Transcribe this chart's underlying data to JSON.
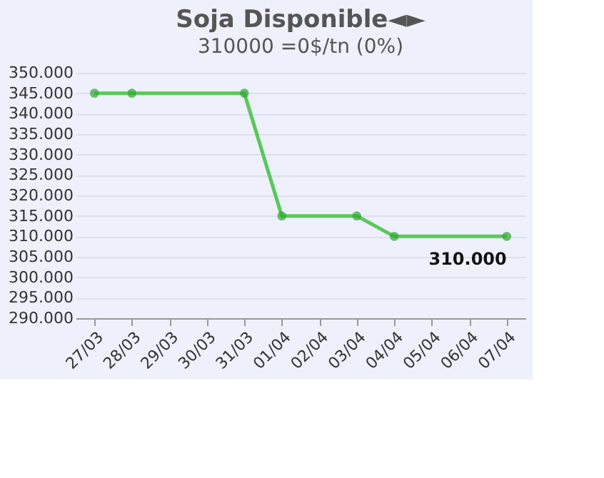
{
  "chart_data": {
    "type": "line",
    "title": "Soja Disponible◄►",
    "subtitle": "310000 =0$/tn (0%)",
    "categories": [
      "27/03",
      "28/03",
      "29/03",
      "30/03",
      "31/03",
      "01/04",
      "02/04",
      "03/04",
      "04/04",
      "05/04",
      "06/04",
      "07/04"
    ],
    "series": [
      {
        "color": "#5ac85a",
        "x": [
          "27/03",
          "28/03",
          "31/03",
          "01/04",
          "03/04",
          "04/04",
          "07/04"
        ],
        "values": [
          345000,
          345000,
          345000,
          315000,
          315000,
          310000,
          310000
        ],
        "value_labels": [
          null,
          null,
          null,
          null,
          null,
          null,
          "310.000"
        ]
      }
    ],
    "ylim": [
      290000,
      350000
    ],
    "yticks": [
      {
        "value": 290000,
        "label": "290.000"
      },
      {
        "value": 295000,
        "label": "295.000"
      },
      {
        "value": 300000,
        "label": "300.000"
      },
      {
        "value": 305000,
        "label": "305.000"
      },
      {
        "value": 310000,
        "label": "310.000"
      },
      {
        "value": 315000,
        "label": "315.000"
      },
      {
        "value": 320000,
        "label": "320.000"
      },
      {
        "value": 325000,
        "label": "325.000"
      },
      {
        "value": 330000,
        "label": "330.000"
      },
      {
        "value": 335000,
        "label": "335.000"
      },
      {
        "value": 340000,
        "label": "340.000"
      },
      {
        "value": 345000,
        "label": "345.000"
      },
      {
        "value": 350000,
        "label": "350.000"
      }
    ],
    "grid": "y",
    "marker": "circle",
    "line_style": "solid"
  }
}
